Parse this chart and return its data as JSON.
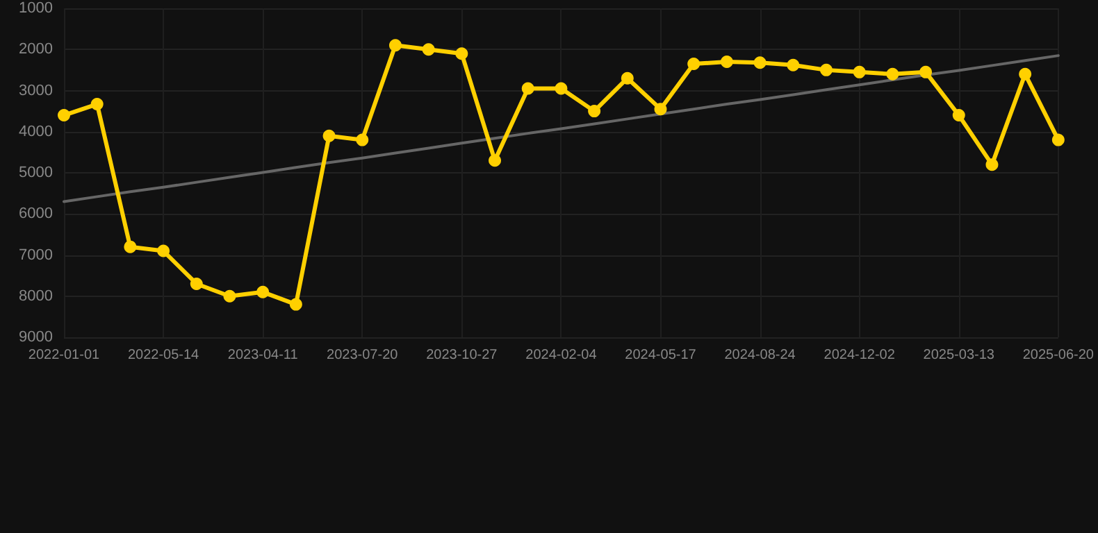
{
  "chart_data": {
    "type": "line",
    "categories": [
      "2022-01-01",
      null,
      null,
      "2022-05-14",
      null,
      null,
      "2023-04-11",
      null,
      null,
      "2023-07-20",
      null,
      null,
      "2023-10-27",
      null,
      null,
      "2024-02-04",
      null,
      null,
      "2024-05-17",
      null,
      null,
      "2024-08-24",
      null,
      null,
      "2024-12-02",
      null,
      null,
      "2025-03-13",
      null,
      null,
      "2025-06-20"
    ],
    "series": [
      {
        "color": "#ffd000",
        "values": [
          3600,
          3330,
          6800,
          6900,
          7700,
          8000,
          7900,
          8200,
          4100,
          4200,
          1900,
          2000,
          2100,
          4700,
          2950,
          2950,
          3500,
          2700,
          3450,
          2350,
          2300,
          2320,
          2380,
          2500,
          2550,
          2600,
          2550,
          3600,
          4800,
          2600,
          4200
        ]
      },
      {
        "type": "line",
        "color": "#666666",
        "values": [
          5700,
          5580,
          5460,
          5350,
          5230,
          5110,
          4990,
          4870,
          4750,
          4640,
          4520,
          4400,
          4280,
          4160,
          4040,
          3930,
          3810,
          3690,
          3570,
          3450,
          3330,
          3220,
          3100,
          2980,
          2860,
          2740,
          2620,
          2510,
          2390,
          2270,
          2150
        ],
        "marker": "none"
      }
    ],
    "marker": "circle",
    "line_style": "solid",
    "ylim": [
      9000,
      1000
    ],
    "yticks": [
      1000,
      2000,
      3000,
      4000,
      5000,
      6000,
      7000,
      8000,
      9000
    ],
    "grid": true
  }
}
